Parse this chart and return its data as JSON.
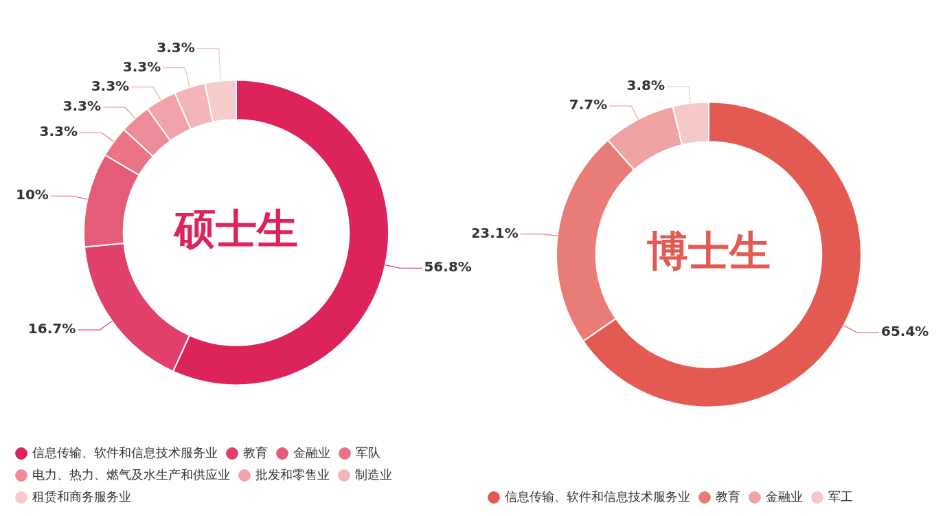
{
  "chart_data": [
    {
      "type": "donut",
      "title": "硕士生",
      "categories": [
        "信息传输、软件和信息技术服务业",
        "教育",
        "金融业",
        "军队",
        "电力、热力、燃气及水生产和供应业",
        "批发和零售业",
        "制造业",
        "租赁和商务服务业"
      ],
      "values": [
        56.8,
        16.7,
        10,
        3.3,
        3.3,
        3.3,
        3.3,
        3.3
      ],
      "value_labels": [
        "56.8%",
        "16.7%",
        "10%",
        "3.3%",
        "3.3%",
        "3.3%",
        "3.3%",
        "3.3%"
      ],
      "colors": [
        "#dc235a",
        "#e0406a",
        "#e55c78",
        "#ea7386",
        "#ee8b98",
        "#f1a2aa",
        "#f4b5b9",
        "#f7cacb"
      ],
      "legend": "bottom"
    },
    {
      "type": "donut",
      "title": "博士生",
      "categories": [
        "信息传输、软件和信息技术服务业",
        "教育",
        "金融业",
        "军工"
      ],
      "values": [
        65.4,
        23.1,
        7.7,
        3.8
      ],
      "value_labels": [
        "65.4%",
        "23.1%",
        "7.7%",
        "3.8%"
      ],
      "colors": [
        "#e35a52",
        "#ea7c77",
        "#f1a2a2",
        "#f5c9c8"
      ],
      "legend": "bottom"
    }
  ]
}
